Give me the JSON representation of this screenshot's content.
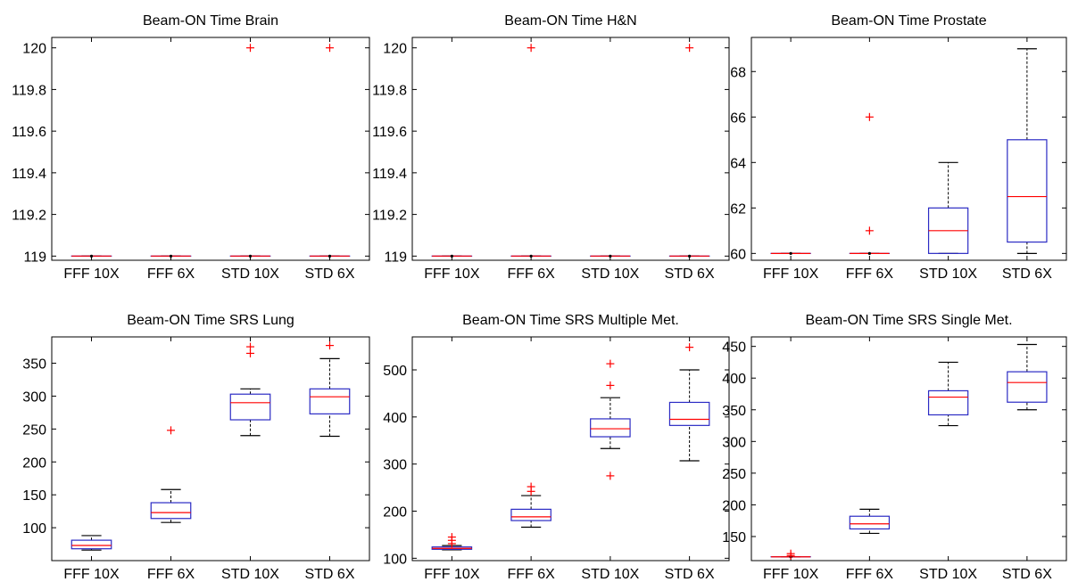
{
  "colors": {
    "box": "#2b2bc4",
    "median": "#ff0000",
    "outlier": "#ff0000",
    "whisker": "#000000"
  },
  "chart_data": [
    {
      "type": "box",
      "title": "Beam-ON Time Brain",
      "categories": [
        "FFF 10X",
        "FFF 6X",
        "STD 10X",
        "STD 6X"
      ],
      "ylim": [
        118.98,
        120.05
      ],
      "yticks": [
        119,
        119.2,
        119.4,
        119.6,
        119.8,
        120
      ],
      "grid": false,
      "boxes": [
        {
          "min": 119,
          "q1": 119,
          "median": 119,
          "q3": 119,
          "max": 119,
          "outliers": []
        },
        {
          "min": 119,
          "q1": 119,
          "median": 119,
          "q3": 119,
          "max": 119,
          "outliers": []
        },
        {
          "min": 119,
          "q1": 119,
          "median": 119,
          "q3": 119,
          "max": 119,
          "outliers": [
            120
          ]
        },
        {
          "min": 119,
          "q1": 119,
          "median": 119,
          "q3": 119,
          "max": 119,
          "outliers": [
            120
          ]
        }
      ]
    },
    {
      "type": "box",
      "title": "Beam-ON Time H&N",
      "categories": [
        "FFF 10X",
        "FFF 6X",
        "STD 10X",
        "STD 6X"
      ],
      "ylim": [
        118.98,
        120.05
      ],
      "yticks": [
        119,
        119.2,
        119.4,
        119.6,
        119.8,
        120
      ],
      "grid": false,
      "boxes": [
        {
          "min": 119,
          "q1": 119,
          "median": 119,
          "q3": 119,
          "max": 119,
          "outliers": []
        },
        {
          "min": 119,
          "q1": 119,
          "median": 119,
          "q3": 119,
          "max": 119,
          "outliers": [
            120
          ]
        },
        {
          "min": 119,
          "q1": 119,
          "median": 119,
          "q3": 119,
          "max": 119,
          "outliers": []
        },
        {
          "min": 119,
          "q1": 119,
          "median": 119,
          "q3": 119,
          "max": 119,
          "outliers": [
            120
          ]
        }
      ]
    },
    {
      "type": "box",
      "title": "Beam-ON Time Prostate",
      "categories": [
        "FFF 10X",
        "FFF 6X",
        "STD 10X",
        "STD 6X"
      ],
      "ylim": [
        59.7,
        69.5
      ],
      "yticks": [
        60,
        62,
        64,
        66,
        68
      ],
      "grid": false,
      "boxes": [
        {
          "min": 60,
          "q1": 60,
          "median": 60,
          "q3": 60,
          "max": 60,
          "outliers": []
        },
        {
          "min": 60,
          "q1": 60,
          "median": 60,
          "q3": 60,
          "max": 60,
          "outliers": [
            61,
            66
          ]
        },
        {
          "min": 60,
          "q1": 60,
          "median": 61,
          "q3": 62,
          "max": 64,
          "outliers": []
        },
        {
          "min": 60,
          "q1": 60.5,
          "median": 62.5,
          "q3": 65,
          "max": 69,
          "outliers": []
        }
      ]
    },
    {
      "type": "box",
      "title": "Beam-ON Time SRS Lung",
      "categories": [
        "FFF 10X",
        "FFF 6X",
        "STD 10X",
        "STD 6X"
      ],
      "ylim": [
        50,
        390
      ],
      "yticks": [
        100,
        150,
        200,
        250,
        300,
        350
      ],
      "grid": false,
      "boxes": [
        {
          "min": 66,
          "q1": 68,
          "median": 73,
          "q3": 81,
          "max": 88,
          "outliers": []
        },
        {
          "min": 108,
          "q1": 114,
          "median": 123,
          "q3": 138,
          "max": 158,
          "outliers": [
            248
          ]
        },
        {
          "min": 240,
          "q1": 264,
          "median": 290,
          "q3": 303,
          "max": 311,
          "outliers": [
            365,
            375
          ]
        },
        {
          "min": 239,
          "q1": 273,
          "median": 299,
          "q3": 311,
          "max": 357,
          "outliers": [
            377
          ]
        }
      ]
    },
    {
      "type": "box",
      "title": "Beam-ON Time SRS Multiple Met.",
      "categories": [
        "FFF 10X",
        "FFF 6X",
        "STD 10X",
        "STD 6X"
      ],
      "ylim": [
        95,
        570
      ],
      "yticks": [
        100,
        200,
        300,
        400,
        500
      ],
      "grid": false,
      "boxes": [
        {
          "min": 118,
          "q1": 119,
          "median": 121,
          "q3": 124,
          "max": 127,
          "outliers": [
            131,
            138,
            145
          ]
        },
        {
          "min": 166,
          "q1": 180,
          "median": 188,
          "q3": 204,
          "max": 233,
          "outliers": [
            242,
            252
          ]
        },
        {
          "min": 333,
          "q1": 358,
          "median": 375,
          "q3": 396,
          "max": 441,
          "outliers": [
            275,
            467,
            513
          ]
        },
        {
          "min": 307,
          "q1": 382,
          "median": 395,
          "q3": 431,
          "max": 500,
          "outliers": [
            548
          ]
        }
      ]
    },
    {
      "type": "box",
      "title": "Beam-ON Time SRS Single Met.",
      "categories": [
        "FFF 10X",
        "FFF 6X",
        "STD 10X",
        "STD 6X"
      ],
      "ylim": [
        112,
        465
      ],
      "yticks": [
        150,
        200,
        250,
        300,
        350,
        400,
        450
      ],
      "grid": false,
      "boxes": [
        {
          "min": 118,
          "q1": 118,
          "median": 118,
          "q3": 118,
          "max": 118,
          "outliers": [
            120,
            123
          ]
        },
        {
          "min": 155,
          "q1": 162,
          "median": 170,
          "q3": 182,
          "max": 193,
          "outliers": []
        },
        {
          "min": 325,
          "q1": 342,
          "median": 370,
          "q3": 380,
          "max": 425,
          "outliers": []
        },
        {
          "min": 350,
          "q1": 362,
          "median": 393,
          "q3": 410,
          "max": 453,
          "outliers": []
        }
      ]
    }
  ]
}
